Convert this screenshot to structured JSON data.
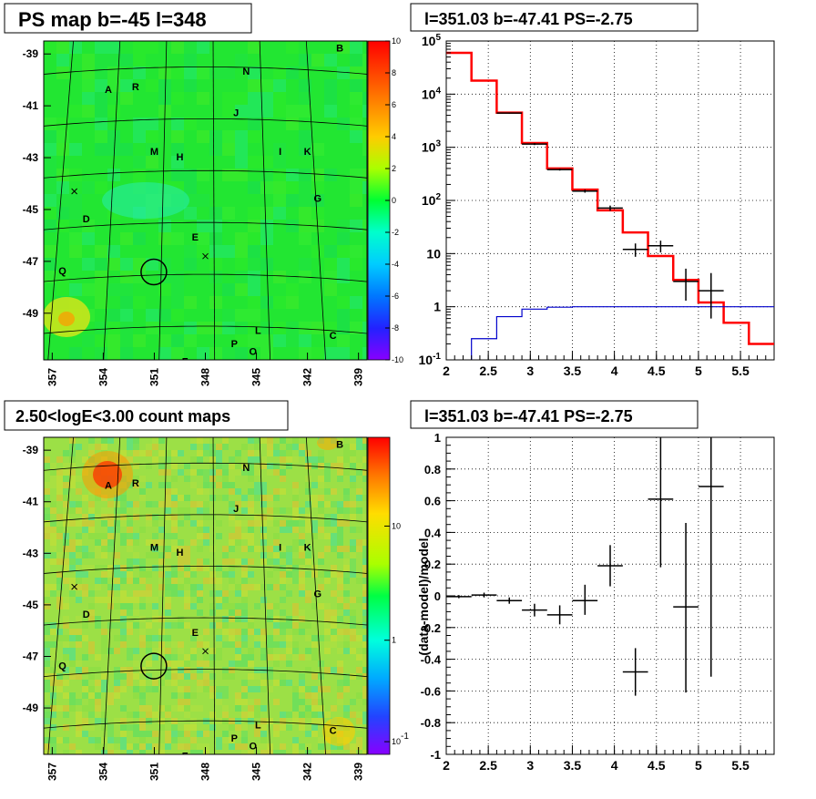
{
  "panels": {
    "tl_title": "PS map b=-45 l=348",
    "tr_title": "l=351.03 b=-47.41 PS=-2.75",
    "bl_title": "2.50<logE<3.00 count maps",
    "br_title": "l=351.03 b=-47.41 PS=-2.75"
  },
  "map_labels": [
    {
      "t": "A",
      "l": 353.7,
      "b": -40.5
    },
    {
      "t": "R",
      "l": 352.1,
      "b": -40.4
    },
    {
      "t": "B",
      "l": 340.1,
      "b": -38.9
    },
    {
      "t": "N",
      "l": 345.6,
      "b": -39.8
    },
    {
      "t": "J",
      "l": 346.2,
      "b": -41.4
    },
    {
      "t": "M",
      "l": 351.0,
      "b": -42.9
    },
    {
      "t": "H",
      "l": 349.5,
      "b": -43.1
    },
    {
      "t": "I",
      "l": 343.6,
      "b": -42.9
    },
    {
      "t": "K",
      "l": 342.0,
      "b": -42.9
    },
    {
      "t": "G",
      "l": 341.4,
      "b": -44.7
    },
    {
      "t": "D",
      "l": 355.0,
      "b": -45.5
    },
    {
      "t": "E",
      "l": 348.6,
      "b": -46.2
    },
    {
      "t": "Q",
      "l": 356.4,
      "b": -47.5
    },
    {
      "t": "L",
      "l": 344.9,
      "b": -49.8
    },
    {
      "t": "P",
      "l": 346.3,
      "b": -50.3
    },
    {
      "t": "C",
      "l": 340.5,
      "b": -50.0
    },
    {
      "t": "O",
      "l": 345.2,
      "b": -50.6
    },
    {
      "t": "F",
      "l": 349.2,
      "b": -51.0
    }
  ],
  "chart_data": [
    {
      "id": "ps-map",
      "type": "heatmap",
      "title": "PS map b=-45 l=348",
      "x_ticks": [
        "357",
        "354",
        "351",
        "348",
        "345",
        "342",
        "339"
      ],
      "y_ticks": [
        "-39",
        "-41",
        "-43",
        "-45",
        "-47",
        "-49"
      ],
      "xlim": [
        357.5,
        338.5
      ],
      "ylim": [
        -50.8,
        -38.5
      ],
      "colorbar": {
        "scale": "linear",
        "range": [
          -10,
          10
        ],
        "ticks": [
          10,
          8,
          6,
          4,
          2,
          0,
          -2,
          -4,
          -6,
          -8,
          -10
        ]
      }
    },
    {
      "id": "spectrum",
      "type": "line",
      "title": "l=351.03 b=-47.41 PS=-2.75",
      "y_scale": "log",
      "xlim": [
        2,
        5.9
      ],
      "ylim": [
        0.1,
        100000
      ],
      "x_ticks": [
        "2",
        "2.5",
        "3",
        "3.5",
        "4",
        "4.5",
        "5",
        "5.5"
      ],
      "y_ticks": [
        "10^-1",
        "1",
        "10",
        "10^2",
        "10^3",
        "10^4",
        "10^5"
      ],
      "grid": true,
      "model_total": {
        "color": "#ff0000",
        "bin_edges": [
          2.0,
          2.3,
          2.6,
          2.9,
          3.2,
          3.5,
          3.8,
          4.1,
          4.4,
          4.7,
          5.0,
          5.3,
          5.6,
          5.9
        ],
        "values": [
          60000,
          18000,
          4500,
          1200,
          400,
          160,
          65,
          25,
          9,
          3.2,
          1.2,
          0.5,
          0.2
        ]
      },
      "source_model": {
        "color": "#0000cc",
        "bin_edges": [
          2.3,
          2.6,
          2.9,
          3.2,
          3.5,
          3.8,
          4.1,
          4.4,
          4.7,
          5.0,
          5.3,
          5.6,
          5.9
        ],
        "values": [
          0.25,
          0.65,
          0.9,
          0.98,
          1.0,
          1.0,
          1.0,
          1.0,
          1.0,
          1.0,
          1.0,
          1.0
        ]
      },
      "data": [
        {
          "x": 2.75,
          "xerr": 0.15,
          "y": 4400,
          "ylo": 4300,
          "yhi": 4500
        },
        {
          "x": 3.05,
          "xerr": 0.15,
          "y": 1150,
          "ylo": 1100,
          "yhi": 1200
        },
        {
          "x": 3.35,
          "xerr": 0.15,
          "y": 380,
          "ylo": 365,
          "yhi": 395
        },
        {
          "x": 3.65,
          "xerr": 0.15,
          "y": 150,
          "ylo": 140,
          "yhi": 160
        },
        {
          "x": 3.95,
          "xerr": 0.15,
          "y": 72,
          "ylo": 64,
          "yhi": 80
        },
        {
          "x": 4.25,
          "xerr": 0.15,
          "y": 12,
          "ylo": 8.7,
          "yhi": 15.5
        },
        {
          "x": 4.55,
          "xerr": 0.15,
          "y": 14,
          "ylo": 10.5,
          "yhi": 17.5
        },
        {
          "x": 4.85,
          "xerr": 0.15,
          "y": 3,
          "ylo": 1.3,
          "yhi": 5.2
        },
        {
          "x": 5.15,
          "xerr": 0.15,
          "y": 2,
          "ylo": 0.6,
          "yhi": 4.3
        }
      ]
    },
    {
      "id": "count-map",
      "type": "heatmap",
      "title": "2.50<logE<3.00 count maps",
      "x_ticks": [
        "357",
        "354",
        "351",
        "348",
        "345",
        "342",
        "339"
      ],
      "y_ticks": [
        "-39",
        "-41",
        "-43",
        "-45",
        "-47",
        "-49"
      ],
      "xlim": [
        357.5,
        338.5
      ],
      "ylim": [
        -50.8,
        -38.5
      ],
      "colorbar": {
        "scale": "log",
        "ticks": [
          "10",
          "1",
          "10^-1"
        ]
      }
    },
    {
      "id": "residual",
      "type": "scatter",
      "title": "l=351.03 b=-47.41 PS=-2.75",
      "ylabel": "(data-model)/model",
      "xlim": [
        2,
        5.9
      ],
      "ylim": [
        -1,
        1
      ],
      "x_ticks": [
        "2",
        "2.5",
        "3",
        "3.5",
        "4",
        "4.5",
        "5",
        "5.5"
      ],
      "y_ticks": [
        "1",
        "0.8",
        "0.6",
        "0.4",
        "0.2",
        "0",
        "-0.2",
        "-0.4",
        "-0.6",
        "-0.8",
        "-1"
      ],
      "grid": true,
      "data": [
        {
          "x": 2.15,
          "xerr": 0.15,
          "y": -0.005,
          "ylo": -0.015,
          "yhi": 0.005
        },
        {
          "x": 2.45,
          "xerr": 0.15,
          "y": 0.005,
          "ylo": -0.01,
          "yhi": 0.02
        },
        {
          "x": 2.75,
          "xerr": 0.15,
          "y": -0.03,
          "ylo": -0.05,
          "yhi": -0.01
        },
        {
          "x": 3.05,
          "xerr": 0.15,
          "y": -0.09,
          "ylo": -0.13,
          "yhi": -0.05
        },
        {
          "x": 3.35,
          "xerr": 0.15,
          "y": -0.12,
          "ylo": -0.18,
          "yhi": -0.06
        },
        {
          "x": 3.65,
          "xerr": 0.15,
          "y": -0.03,
          "ylo": -0.12,
          "yhi": 0.07
        },
        {
          "x": 3.95,
          "xerr": 0.15,
          "y": 0.19,
          "ylo": 0.06,
          "yhi": 0.32
        },
        {
          "x": 4.25,
          "xerr": 0.15,
          "y": -0.48,
          "ylo": -0.63,
          "yhi": -0.33
        },
        {
          "x": 4.55,
          "xerr": 0.15,
          "y": 0.61,
          "ylo": 0.18,
          "yhi": 1.0
        },
        {
          "x": 4.85,
          "xerr": 0.15,
          "y": -0.07,
          "ylo": -0.61,
          "yhi": 0.46
        },
        {
          "x": 5.15,
          "xerr": 0.15,
          "y": 0.69,
          "ylo": -0.51,
          "yhi": 1.0
        }
      ]
    }
  ]
}
